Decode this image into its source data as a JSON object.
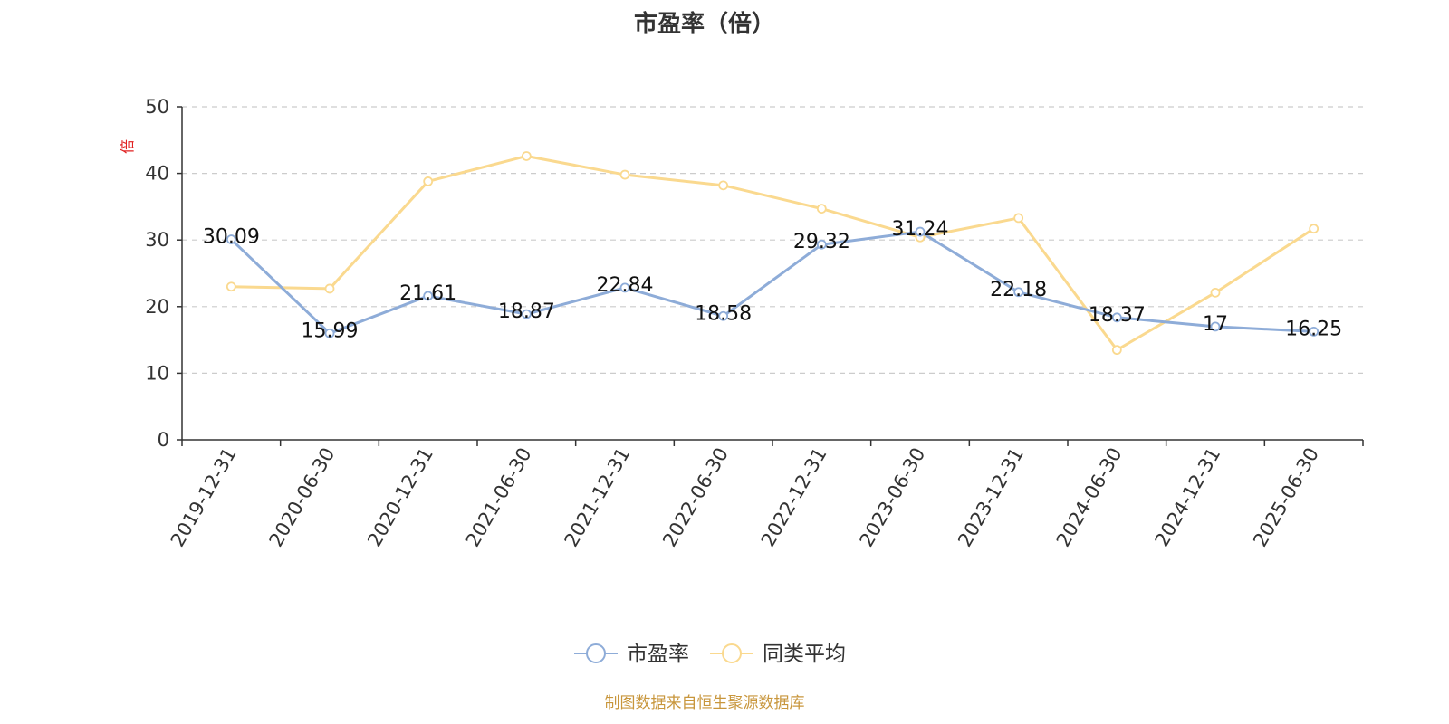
{
  "chart_data": {
    "type": "line",
    "title": "市盈率（倍）",
    "ylabel": "倍",
    "xlabel": "",
    "categories": [
      "2019-12-31",
      "2020-06-30",
      "2020-12-31",
      "2021-06-30",
      "2021-12-31",
      "2022-06-30",
      "2022-12-31",
      "2023-06-30",
      "2023-12-31",
      "2024-06-30",
      "2024-12-31",
      "2025-06-30"
    ],
    "ylim": [
      0,
      50
    ],
    "yticks": [
      0,
      10,
      20,
      30,
      40,
      50
    ],
    "grid": true,
    "legend_position": "bottom",
    "series": [
      {
        "name": "市盈率",
        "color": "#8eacd8",
        "values": [
          30.09,
          15.99,
          21.61,
          18.87,
          22.84,
          18.58,
          29.32,
          31.24,
          22.18,
          18.37,
          17,
          16.25
        ],
        "labels": [
          "30.09",
          "15.99",
          "21.61",
          "18.87",
          "22.84",
          "18.58",
          "29.32",
          "31.24",
          "22.18",
          "18.37",
          "17",
          "16.25"
        ]
      },
      {
        "name": "同类平均",
        "color": "#fad98f",
        "values": [
          23.0,
          22.7,
          38.8,
          42.6,
          39.8,
          38.2,
          34.7,
          30.4,
          33.3,
          13.5,
          22.1,
          31.7
        ]
      }
    ],
    "source": "制图数据来自恒生聚源数据库"
  }
}
